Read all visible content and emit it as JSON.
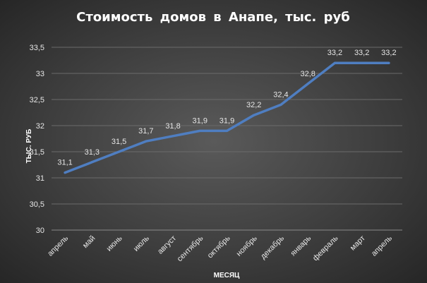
{
  "chart_data": {
    "type": "line",
    "title": "Стоимость  домов  в  Анапе,  тыс.  руб",
    "xlabel": "МЕСЯЦ",
    "ylabel": "ТЫС. РУБ",
    "categories": [
      "апрель",
      "май",
      "июнь",
      "июль",
      "август",
      "сентябрь",
      "октябрь",
      "ноябрь",
      "декабрь",
      "январь",
      "февраль",
      "март",
      "апрель"
    ],
    "series": [
      {
        "values": [
          31.1,
          31.3,
          31.5,
          31.7,
          31.8,
          31.9,
          31.9,
          32.2,
          32.4,
          32.8,
          33.2,
          33.2,
          33.2
        ],
        "data_labels": [
          "31,1",
          "31,3",
          "31,5",
          "31,7",
          "31,8",
          "31,9",
          "31,9",
          "32,2",
          "32,4",
          "32,8",
          "33,2",
          "33,2",
          "33,2"
        ],
        "color": "#4f7ec1"
      }
    ],
    "ylim": [
      30,
      33.5
    ],
    "y_ticks": [
      30,
      30.5,
      31,
      31.5,
      32,
      32.5,
      33,
      33.5
    ],
    "y_tick_labels": [
      "30",
      "30,5",
      "31",
      "31,5",
      "32",
      "32,5",
      "33",
      "33,5"
    ],
    "grid": true,
    "legend": "none"
  }
}
